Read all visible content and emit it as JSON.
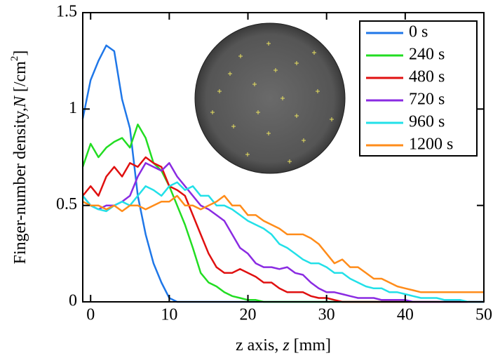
{
  "chart_data": {
    "type": "line",
    "xlabel": {
      "text": "z axis, ",
      "var": "z",
      "unit": " [mm]"
    },
    "ylabel": {
      "text": "Finger-number density,",
      "var": "N",
      "unit": " [/cm",
      "sup": "2",
      "close": "]"
    },
    "x": [
      -1,
      0,
      1,
      2,
      3,
      4,
      5,
      6,
      7,
      8,
      9,
      10,
      11,
      12,
      13,
      14,
      15,
      16,
      17,
      18,
      19,
      20,
      21,
      22,
      23,
      24,
      25,
      26,
      27,
      28,
      29,
      30,
      31,
      32,
      33,
      34,
      35,
      36,
      37,
      38,
      39,
      40,
      41,
      42,
      43,
      44,
      45,
      46,
      47,
      48,
      49,
      50
    ],
    "series": [
      {
        "name": "0 s",
        "color": "#1f77e8",
        "values": [
          0.95,
          1.15,
          1.25,
          1.33,
          1.3,
          1.05,
          0.9,
          0.55,
          0.35,
          0.2,
          0.1,
          0.02,
          0,
          0,
          0,
          0,
          0,
          0,
          0,
          0,
          0,
          0,
          0,
          0,
          0,
          0,
          0,
          0,
          0,
          0,
          0,
          0,
          0,
          0,
          0,
          0,
          0,
          0,
          0,
          0,
          0,
          0,
          0,
          0,
          0,
          0,
          0,
          0,
          0,
          0,
          0,
          0
        ]
      },
      {
        "name": "240 s",
        "color": "#22dd22",
        "values": [
          0.7,
          0.82,
          0.75,
          0.8,
          0.83,
          0.85,
          0.8,
          0.92,
          0.85,
          0.72,
          0.68,
          0.6,
          0.5,
          0.4,
          0.28,
          0.15,
          0.1,
          0.08,
          0.05,
          0.03,
          0.02,
          0.01,
          0.01,
          0,
          0,
          0,
          0,
          0,
          0,
          0,
          0,
          0,
          0,
          0,
          0,
          0,
          0,
          0,
          0,
          0,
          0,
          0,
          0,
          0,
          0,
          0,
          0,
          0,
          0,
          0,
          0,
          0
        ]
      },
      {
        "name": "480 s",
        "color": "#e01010",
        "values": [
          0.55,
          0.6,
          0.55,
          0.65,
          0.7,
          0.65,
          0.72,
          0.7,
          0.75,
          0.72,
          0.7,
          0.6,
          0.58,
          0.55,
          0.45,
          0.35,
          0.25,
          0.18,
          0.15,
          0.15,
          0.17,
          0.15,
          0.13,
          0.1,
          0.1,
          0.07,
          0.05,
          0.05,
          0.05,
          0.03,
          0.02,
          0.02,
          0.01,
          0,
          0,
          0,
          0,
          0,
          0,
          0,
          0,
          0,
          0,
          0,
          0,
          0,
          0,
          0,
          0,
          0,
          0,
          0
        ]
      },
      {
        "name": "720 s",
        "color": "#8a2be2",
        "values": [
          0.55,
          0.5,
          0.48,
          0.5,
          0.5,
          0.52,
          0.55,
          0.65,
          0.72,
          0.7,
          0.68,
          0.72,
          0.65,
          0.6,
          0.55,
          0.5,
          0.48,
          0.45,
          0.42,
          0.35,
          0.28,
          0.25,
          0.2,
          0.18,
          0.18,
          0.17,
          0.18,
          0.15,
          0.14,
          0.1,
          0.07,
          0.05,
          0.05,
          0.04,
          0.03,
          0.02,
          0.02,
          0.02,
          0.01,
          0.01,
          0.01,
          0.01,
          0,
          0,
          0,
          0,
          0,
          0,
          0,
          0,
          0,
          0
        ]
      },
      {
        "name": "960 s",
        "color": "#22e0e8",
        "values": [
          0.55,
          0.5,
          0.48,
          0.47,
          0.5,
          0.52,
          0.5,
          0.55,
          0.6,
          0.58,
          0.55,
          0.6,
          0.62,
          0.58,
          0.6,
          0.55,
          0.55,
          0.5,
          0.5,
          0.48,
          0.45,
          0.42,
          0.4,
          0.38,
          0.35,
          0.3,
          0.28,
          0.25,
          0.22,
          0.2,
          0.2,
          0.18,
          0.15,
          0.15,
          0.12,
          0.1,
          0.08,
          0.07,
          0.07,
          0.05,
          0.05,
          0.04,
          0.03,
          0.02,
          0.02,
          0.02,
          0.01,
          0.01,
          0.01,
          0,
          0,
          0
        ]
      },
      {
        "name": "1200 s",
        "color": "#ff8c1a",
        "values": [
          0.52,
          0.5,
          0.5,
          0.48,
          0.5,
          0.47,
          0.5,
          0.5,
          0.48,
          0.5,
          0.52,
          0.52,
          0.55,
          0.5,
          0.5,
          0.48,
          0.5,
          0.52,
          0.55,
          0.5,
          0.5,
          0.45,
          0.45,
          0.42,
          0.4,
          0.38,
          0.35,
          0.35,
          0.35,
          0.33,
          0.3,
          0.25,
          0.2,
          0.22,
          0.18,
          0.18,
          0.15,
          0.12,
          0.12,
          0.1,
          0.08,
          0.07,
          0.06,
          0.05,
          0.05,
          0.05,
          0.05,
          0.05,
          0.05,
          0.05,
          0.05,
          0.05
        ]
      }
    ],
    "xlim": [
      -1,
      50
    ],
    "xticks": [
      0,
      10,
      20,
      30,
      40,
      50
    ],
    "ylim": [
      0,
      1.5
    ],
    "yticks": [
      0,
      0.5,
      1,
      1.5
    ],
    "legend": "upper right"
  }
}
